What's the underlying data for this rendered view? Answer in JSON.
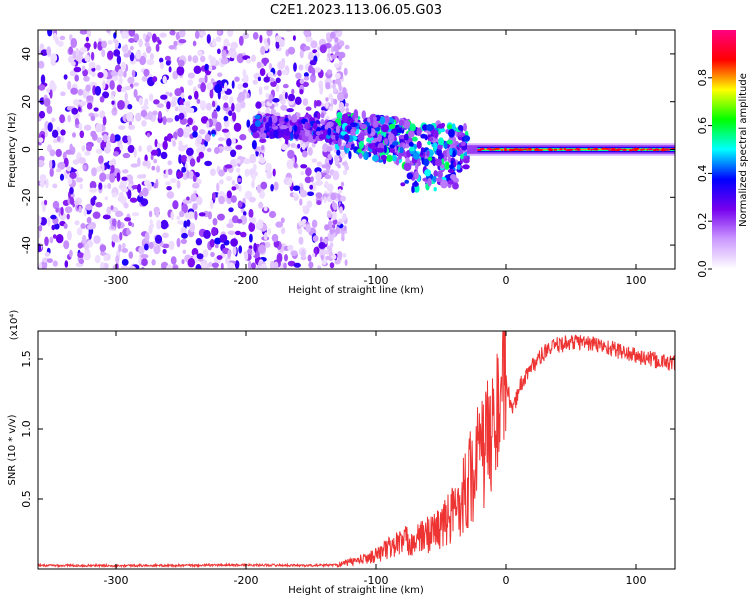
{
  "title": "C2E1.2023.113.06.05.G03",
  "chart_data": [
    {
      "type": "heatmap",
      "title": "",
      "xlabel": "Height of straight line (km)",
      "ylabel": "Frequency (Hz)",
      "xlim": [
        -360,
        130
      ],
      "ylim": [
        -50,
        50
      ],
      "xticks": [
        -300,
        -200,
        -100,
        0,
        100
      ],
      "yticks": [
        -40,
        -20,
        0,
        20,
        40
      ],
      "colorbar": {
        "label": "Normalized spectral amplitude",
        "range": [
          0,
          1
        ],
        "ticks": [
          "0.0",
          "0.2",
          "0.4",
          "0.6",
          "0.8"
        ],
        "tick_values": [
          0,
          0.2,
          0.4,
          0.6,
          0.8
        ],
        "colors": [
          "#ffffff",
          "#cc99ff",
          "#7700ee",
          "#0000ff",
          "#00ffff",
          "#00ff00",
          "#ffff00",
          "#ff0000",
          "#ff0080"
        ]
      },
      "regions": [
        {
          "x_range": [
            -360,
            -125
          ],
          "frequency_range": [
            -50,
            50
          ],
          "amplitude": "scattered 0.05-0.3"
        },
        {
          "x_range": [
            -195,
            -30
          ],
          "frequency_range": [
            -15,
            15
          ],
          "amplitude": "0.2-0.5"
        },
        {
          "x_range": [
            -30,
            130
          ],
          "frequency_range": [
            -2,
            2
          ],
          "amplitude": "0.3-0.9"
        }
      ],
      "ridge": {
        "x": [
          -195,
          -160,
          -130,
          -100,
          -80,
          -60,
          -40,
          -25,
          -10,
          0,
          50,
          100,
          130
        ],
        "frequency": [
          10,
          9,
          7,
          5,
          3,
          2,
          1,
          1,
          0.5,
          0,
          0,
          0,
          0
        ]
      }
    },
    {
      "type": "line",
      "title": "",
      "xlabel": "Height of straight line (km)",
      "ylabel": "SNR (10 * v/v)",
      "y_multiplier": "(x10⁴)",
      "xlim": [
        -360,
        130
      ],
      "ylim": [
        0,
        1.7
      ],
      "xticks": [
        -300,
        -200,
        -100,
        0,
        100
      ],
      "yticks": [
        "0.5",
        "1.0",
        "1.5"
      ],
      "ytick_values": [
        0.5,
        1.0,
        1.5
      ],
      "line_color": "#ee3333",
      "series": [
        {
          "x": [
            -360,
            -300,
            -250,
            -200,
            -150,
            -130,
            -120,
            -110,
            -100,
            -90,
            -80,
            -70,
            -60,
            -50,
            -45,
            -40,
            -35,
            -30,
            -25,
            -20,
            -15,
            -10,
            -5,
            0,
            5,
            10,
            20,
            30,
            40,
            50,
            60,
            70,
            80,
            90,
            100,
            110,
            120,
            130
          ],
          "values": [
            0.025,
            0.025,
            0.025,
            0.03,
            0.025,
            0.03,
            0.05,
            0.07,
            0.1,
            0.15,
            0.2,
            0.2,
            0.25,
            0.3,
            0.35,
            0.4,
            0.5,
            0.6,
            0.7,
            0.8,
            0.9,
            1.0,
            1.2,
            1.35,
            1.1,
            1.3,
            1.45,
            1.55,
            1.6,
            1.62,
            1.62,
            1.6,
            1.58,
            1.55,
            1.52,
            1.5,
            1.48,
            1.47
          ]
        }
      ]
    }
  ]
}
